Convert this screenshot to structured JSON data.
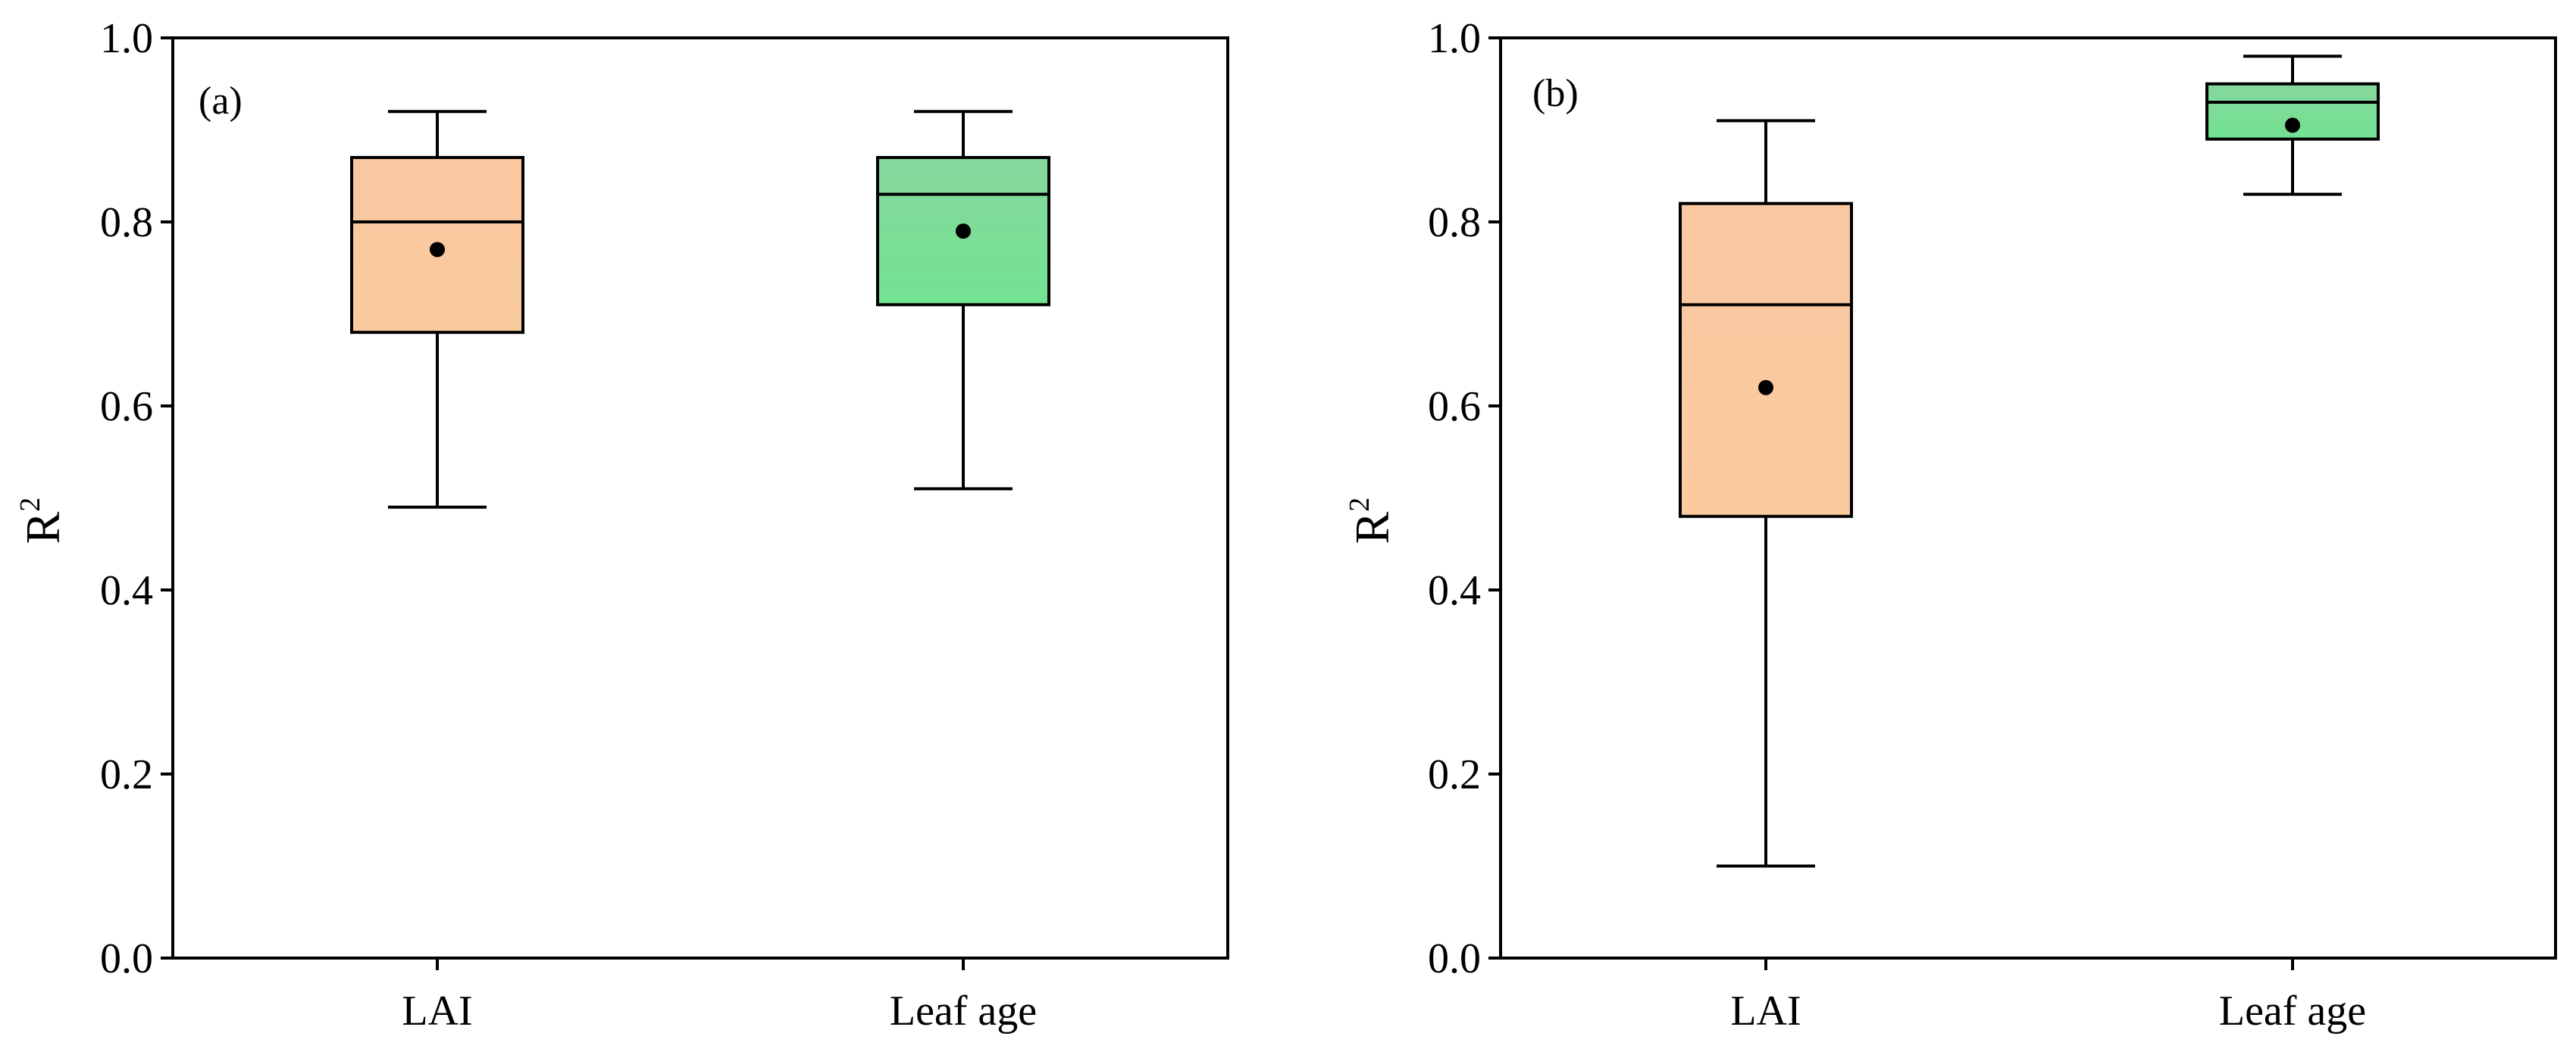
{
  "chart_data": [
    {
      "type": "box",
      "panel_label": "(a)",
      "ylabel_main": "R",
      "ylabel_sup": "2",
      "xlabel": "",
      "ylim": [
        0.0,
        1.0
      ],
      "yticks": [
        0.0,
        0.2,
        0.4,
        0.6,
        0.8,
        1.0
      ],
      "ytick_labels": [
        "0.0",
        "0.2",
        "0.4",
        "0.6",
        "0.8",
        "1.0"
      ],
      "categories": [
        "LAI",
        "Leaf age"
      ],
      "boxes": [
        {
          "category": "LAI",
          "whisker_low": 0.49,
          "q1": 0.68,
          "median": 0.8,
          "q3": 0.87,
          "whisker_high": 0.92,
          "mean": 0.77,
          "color_top": "#f9c7a0",
          "color_bottom": "#fbcba0"
        },
        {
          "category": "Leaf age",
          "whisker_low": 0.51,
          "q1": 0.71,
          "median": 0.83,
          "q3": 0.87,
          "whisker_high": 0.92,
          "mean": 0.79,
          "color_top": "#86d79c",
          "color_bottom": "#72e292"
        }
      ]
    },
    {
      "type": "box",
      "panel_label": "(b)",
      "ylabel_main": "R",
      "ylabel_sup": "2",
      "xlabel": "",
      "ylim": [
        0.0,
        1.0
      ],
      "yticks": [
        0.0,
        0.2,
        0.4,
        0.6,
        0.8,
        1.0
      ],
      "ytick_labels": [
        "0.0",
        "0.2",
        "0.4",
        "0.6",
        "0.8",
        "1.0"
      ],
      "categories": [
        "LAI",
        "Leaf age"
      ],
      "boxes": [
        {
          "category": "LAI",
          "whisker_low": 0.1,
          "q1": 0.48,
          "median": 0.71,
          "q3": 0.82,
          "whisker_high": 0.91,
          "mean": 0.62,
          "color_top": "#f9c7a0",
          "color_bottom": "#fbcba0"
        },
        {
          "category": "Leaf age",
          "whisker_low": 0.83,
          "q1": 0.89,
          "median": 0.93,
          "q3": 0.95,
          "whisker_high": 0.98,
          "mean": 0.905,
          "color_top": "#86d79c",
          "color_bottom": "#72e292"
        }
      ]
    }
  ]
}
